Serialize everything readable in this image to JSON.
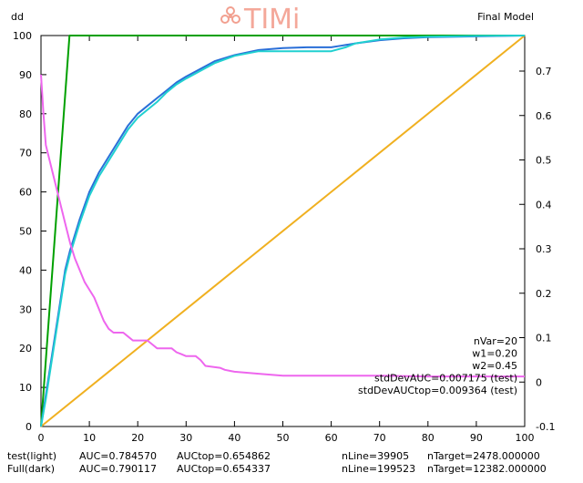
{
  "title_left": "dd",
  "title_right": "Final Model",
  "logo_text": "TIMi",
  "chart_data": {
    "type": "line",
    "xlim": [
      0,
      100
    ],
    "ylim_left": [
      0,
      100
    ],
    "ylim_right": [
      -0.1,
      0.78
    ],
    "x_ticks": [
      0,
      10,
      20,
      30,
      40,
      50,
      60,
      70,
      80,
      90,
      100
    ],
    "y_left_ticks": [
      0,
      10,
      20,
      30,
      40,
      50,
      60,
      70,
      80,
      90,
      100
    ],
    "y_right_ticks": [
      -0.1,
      0,
      0.1,
      0.2,
      0.3,
      0.4,
      0.5,
      0.6,
      0.7
    ],
    "grid": false,
    "series": [
      {
        "color": "#00a000",
        "axis": "left",
        "points": [
          [
            0,
            0
          ],
          [
            5.9,
            100
          ],
          [
            100,
            100
          ]
        ]
      },
      {
        "color": "#f0b020",
        "axis": "left",
        "points": [
          [
            0,
            0
          ],
          [
            100,
            100
          ]
        ]
      },
      {
        "color": "#2a6fd8",
        "axis": "left",
        "points": [
          [
            0,
            0
          ],
          [
            1,
            8
          ],
          [
            2,
            16
          ],
          [
            3,
            24
          ],
          [
            4,
            32
          ],
          [
            5,
            40
          ],
          [
            6,
            45
          ],
          [
            8,
            53
          ],
          [
            10,
            60
          ],
          [
            12,
            65
          ],
          [
            14,
            69
          ],
          [
            16,
            73
          ],
          [
            18,
            77
          ],
          [
            20,
            80
          ],
          [
            22,
            82
          ],
          [
            24,
            84
          ],
          [
            26,
            86
          ],
          [
            28,
            88
          ],
          [
            30,
            89.5
          ],
          [
            33,
            91.5
          ],
          [
            36,
            93.5
          ],
          [
            40,
            95
          ],
          [
            45,
            96.3
          ],
          [
            50,
            96.8
          ],
          [
            55,
            97
          ],
          [
            60,
            97
          ],
          [
            62,
            97.4
          ],
          [
            65,
            98
          ],
          [
            70,
            98.8
          ],
          [
            75,
            99.3
          ],
          [
            80,
            99.6
          ],
          [
            90,
            99.8
          ],
          [
            100,
            100
          ]
        ]
      },
      {
        "color": "#20d0d0",
        "axis": "left",
        "points": [
          [
            0,
            0
          ],
          [
            1,
            7
          ],
          [
            2,
            15
          ],
          [
            3,
            23
          ],
          [
            4,
            31
          ],
          [
            5,
            39
          ],
          [
            6,
            44
          ],
          [
            8,
            52
          ],
          [
            10,
            59
          ],
          [
            12,
            64
          ],
          [
            14,
            68
          ],
          [
            16,
            72
          ],
          [
            18,
            76
          ],
          [
            20,
            79
          ],
          [
            22,
            81
          ],
          [
            24,
            83
          ],
          [
            26,
            85.5
          ],
          [
            28,
            87.5
          ],
          [
            30,
            89
          ],
          [
            33,
            91
          ],
          [
            36,
            93
          ],
          [
            40,
            94.8
          ],
          [
            45,
            96
          ],
          [
            50,
            96
          ],
          [
            55,
            96
          ],
          [
            60,
            96
          ],
          [
            63,
            97
          ],
          [
            65,
            98
          ],
          [
            70,
            99
          ],
          [
            75,
            99.5
          ],
          [
            80,
            99.7
          ],
          [
            90,
            99.9
          ],
          [
            100,
            100
          ]
        ]
      },
      {
        "color": "#ee66ee",
        "axis": "left",
        "points": [
          [
            0,
            90
          ],
          [
            0.5,
            80
          ],
          [
            1,
            72
          ],
          [
            2,
            67
          ],
          [
            3,
            62
          ],
          [
            4,
            57
          ],
          [
            5,
            52
          ],
          [
            6,
            47
          ],
          [
            7,
            43
          ],
          [
            8,
            40
          ],
          [
            9,
            37
          ],
          [
            10,
            35
          ],
          [
            11,
            33
          ],
          [
            12,
            30
          ],
          [
            13,
            27
          ],
          [
            14,
            25
          ],
          [
            15,
            24
          ],
          [
            17,
            24
          ],
          [
            18,
            23
          ],
          [
            19,
            22
          ],
          [
            22,
            22
          ],
          [
            23,
            21
          ],
          [
            24,
            20
          ],
          [
            27,
            20
          ],
          [
            28,
            19
          ],
          [
            29,
            18.5
          ],
          [
            30,
            18
          ],
          [
            32,
            18
          ],
          [
            33,
            17
          ],
          [
            34,
            15.5
          ],
          [
            37,
            15
          ],
          [
            38,
            14.5
          ],
          [
            40,
            14
          ],
          [
            45,
            13.5
          ],
          [
            50,
            13
          ],
          [
            60,
            13
          ],
          [
            70,
            13
          ],
          [
            80,
            12.8
          ],
          [
            90,
            12.8
          ],
          [
            100,
            12.8
          ]
        ]
      }
    ],
    "annotations": [
      "nVar=20",
      "w1=0.20",
      "w2=0.45",
      "stdDevAUC=0.007175 (test)",
      "stdDevAUCtop=0.009364 (test)"
    ]
  },
  "footer": {
    "test": {
      "label": "test(light)",
      "auc": "AUC=0.784570",
      "auctop": "AUCtop=0.654862",
      "nline": "nLine=39905",
      "ntarget": "nTarget=2478.000000"
    },
    "full": {
      "label": "Full(dark)",
      "auc": "AUC=0.790117",
      "auctop": "AUCtop=0.654337",
      "nline": "nLine=199523",
      "ntarget": "nTarget=12382.000000"
    }
  }
}
